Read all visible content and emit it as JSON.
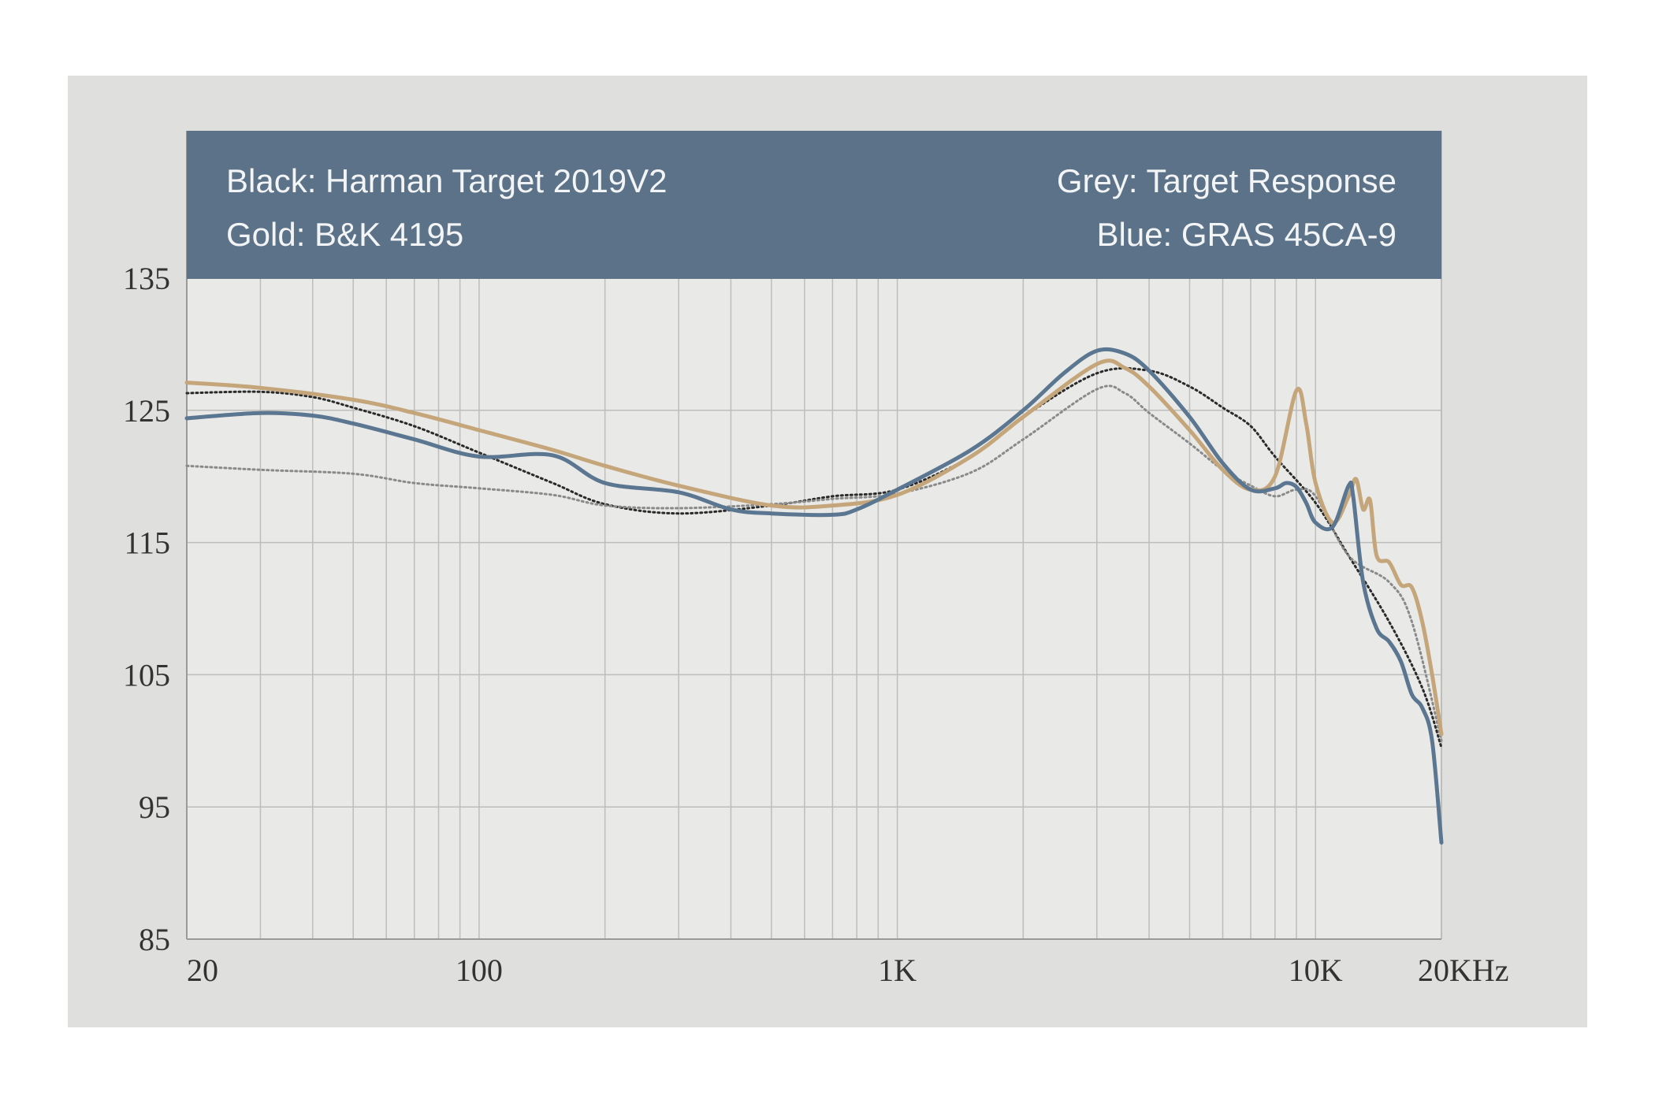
{
  "colors": {
    "panel_bg": "#dfdfdd",
    "plot_bg": "#e9e9e7",
    "header_bg": "#5b7288",
    "grid": "#bdbdbb",
    "axis": "#9a9a98",
    "harman": "#2a2a2a",
    "target": "#8a8a8a",
    "bk4195": "#c5a57a",
    "gras": "#5b7690"
  },
  "legend": {
    "black": "Black: Harman Target 2019V2",
    "gold": "Gold: B&K 4195",
    "grey": "Grey: Target Response",
    "blue": "Blue: GRAS 45CA-9"
  },
  "chart_data": {
    "type": "line",
    "x_scale": "log",
    "xlim": [
      20,
      20000
    ],
    "ylim": [
      85,
      135
    ],
    "x_ticks": [
      {
        "value": 20,
        "label": "20"
      },
      {
        "value": 100,
        "label": "100"
      },
      {
        "value": 1000,
        "label": "1K"
      },
      {
        "value": 10000,
        "label": "10K"
      },
      {
        "value": 20000,
        "label": "20KHz"
      }
    ],
    "y_ticks": [
      {
        "value": 135,
        "label": "135"
      },
      {
        "value": 125,
        "label": "125"
      },
      {
        "value": 115,
        "label": "115"
      },
      {
        "value": 105,
        "label": "105"
      },
      {
        "value": 95,
        "label": "95"
      },
      {
        "value": 85,
        "label": "85"
      }
    ],
    "grid": true,
    "series": [
      {
        "name": "Harman Target 2019V2",
        "color_key": "harman",
        "style": "dotted",
        "points": [
          [
            20,
            126.3
          ],
          [
            30,
            126.4
          ],
          [
            40,
            126.0
          ],
          [
            50,
            125.2
          ],
          [
            70,
            123.8
          ],
          [
            100,
            121.8
          ],
          [
            150,
            119.5
          ],
          [
            200,
            117.9
          ],
          [
            300,
            117.2
          ],
          [
            500,
            117.8
          ],
          [
            700,
            118.5
          ],
          [
            1000,
            119.0
          ],
          [
            1500,
            121.5
          ],
          [
            2000,
            124.5
          ],
          [
            3000,
            127.8
          ],
          [
            4000,
            128.0
          ],
          [
            5000,
            126.8
          ],
          [
            6000,
            125.2
          ],
          [
            7000,
            123.8
          ],
          [
            8000,
            121.5
          ],
          [
            10000,
            118.0
          ],
          [
            12000,
            114.0
          ],
          [
            15000,
            109.0
          ],
          [
            18000,
            104.0
          ],
          [
            20000,
            99.5
          ]
        ]
      },
      {
        "name": "Target Response",
        "color_key": "target",
        "style": "dotted",
        "points": [
          [
            20,
            120.8
          ],
          [
            30,
            120.5
          ],
          [
            50,
            120.2
          ],
          [
            70,
            119.5
          ],
          [
            100,
            119.1
          ],
          [
            150,
            118.6
          ],
          [
            200,
            117.8
          ],
          [
            300,
            117.6
          ],
          [
            500,
            117.9
          ],
          [
            700,
            118.3
          ],
          [
            1000,
            118.7
          ],
          [
            1500,
            120.3
          ],
          [
            2000,
            122.8
          ],
          [
            3000,
            126.6
          ],
          [
            3500,
            126.3
          ],
          [
            4000,
            124.8
          ],
          [
            5000,
            122.5
          ],
          [
            6000,
            120.5
          ],
          [
            7000,
            119.3
          ],
          [
            8000,
            118.5
          ],
          [
            9000,
            119.0
          ],
          [
            10000,
            118.5
          ],
          [
            12000,
            114.0
          ],
          [
            15000,
            112.0
          ],
          [
            17000,
            109.0
          ],
          [
            20000,
            100.0
          ]
        ]
      },
      {
        "name": "B&K 4195",
        "color_key": "bk4195",
        "style": "solid",
        "points": [
          [
            20,
            127.1
          ],
          [
            30,
            126.7
          ],
          [
            50,
            125.8
          ],
          [
            70,
            124.8
          ],
          [
            100,
            123.5
          ],
          [
            150,
            122.0
          ],
          [
            200,
            120.8
          ],
          [
            300,
            119.3
          ],
          [
            500,
            117.8
          ],
          [
            700,
            117.8
          ],
          [
            1000,
            118.6
          ],
          [
            1500,
            121.5
          ],
          [
            2000,
            124.5
          ],
          [
            3000,
            128.5
          ],
          [
            3500,
            128.2
          ],
          [
            4000,
            126.8
          ],
          [
            5000,
            123.5
          ],
          [
            6000,
            120.5
          ],
          [
            7000,
            119.0
          ],
          [
            8000,
            120.0
          ],
          [
            9000,
            126.5
          ],
          [
            9500,
            124.0
          ],
          [
            10000,
            119.5
          ],
          [
            11000,
            116.5
          ],
          [
            12000,
            118.5
          ],
          [
            12500,
            119.8
          ],
          [
            13000,
            117.5
          ],
          [
            13500,
            118.2
          ],
          [
            14000,
            114.0
          ],
          [
            15000,
            113.5
          ],
          [
            16000,
            111.8
          ],
          [
            17000,
            111.6
          ],
          [
            18000,
            109.0
          ],
          [
            19000,
            105.0
          ],
          [
            20000,
            100.5
          ]
        ]
      },
      {
        "name": "GRAS 45CA-9",
        "color_key": "gras",
        "style": "solid",
        "points": [
          [
            20,
            124.4
          ],
          [
            30,
            124.8
          ],
          [
            40,
            124.6
          ],
          [
            50,
            124.0
          ],
          [
            70,
            122.8
          ],
          [
            100,
            121.5
          ],
          [
            150,
            121.6
          ],
          [
            200,
            119.5
          ],
          [
            300,
            118.8
          ],
          [
            400,
            117.5
          ],
          [
            500,
            117.2
          ],
          [
            700,
            117.1
          ],
          [
            800,
            117.5
          ],
          [
            1000,
            119.0
          ],
          [
            1500,
            122.0
          ],
          [
            2000,
            125.0
          ],
          [
            2500,
            127.8
          ],
          [
            3000,
            129.5
          ],
          [
            3500,
            129.3
          ],
          [
            4000,
            128.0
          ],
          [
            5000,
            124.5
          ],
          [
            6000,
            121.0
          ],
          [
            7000,
            119.0
          ],
          [
            8000,
            119.1
          ],
          [
            8500,
            119.5
          ],
          [
            9000,
            119.2
          ],
          [
            9500,
            118.0
          ],
          [
            10000,
            116.5
          ],
          [
            11000,
            116.2
          ],
          [
            12000,
            119.3
          ],
          [
            12300,
            118.5
          ],
          [
            13000,
            112.0
          ],
          [
            14000,
            108.5
          ],
          [
            15000,
            107.5
          ],
          [
            16000,
            106.0
          ],
          [
            17000,
            103.5
          ],
          [
            18000,
            102.5
          ],
          [
            19000,
            100.0
          ],
          [
            20000,
            92.3
          ]
        ]
      }
    ]
  }
}
